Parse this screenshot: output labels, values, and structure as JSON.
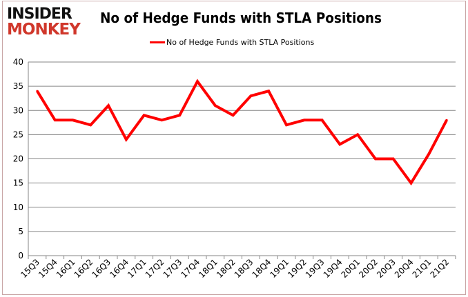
{
  "logo": {
    "line1": "INSIDER",
    "line2": "MONKEY"
  },
  "chart_data": {
    "type": "line",
    "title": "No of Hedge Funds with STLA Positions",
    "xlabel": "",
    "ylabel": "",
    "categories": [
      "15Q3",
      "15Q4",
      "16Q1",
      "16Q2",
      "16Q3",
      "16Q4",
      "17Q1",
      "17Q2",
      "17Q3",
      "17Q4",
      "18Q1",
      "18Q2",
      "18Q3",
      "18Q4",
      "19Q1",
      "19Q2",
      "19Q3",
      "19Q4",
      "20Q1",
      "20Q2",
      "20Q3",
      "20Q4",
      "21Q1",
      "21Q2"
    ],
    "series": [
      {
        "name": "No of Hedge Funds with STLA Positions",
        "color": "#ff0000",
        "values": [
          34,
          28,
          28,
          27,
          31,
          24,
          29,
          28,
          29,
          36,
          31,
          29,
          33,
          34,
          27,
          28,
          28,
          23,
          25,
          20,
          20,
          15,
          21,
          28
        ]
      }
    ],
    "ylim": [
      0,
      40
    ],
    "yticks": [
      0,
      5,
      10,
      15,
      20,
      25,
      30,
      35,
      40
    ],
    "grid": true,
    "legend": "top"
  }
}
